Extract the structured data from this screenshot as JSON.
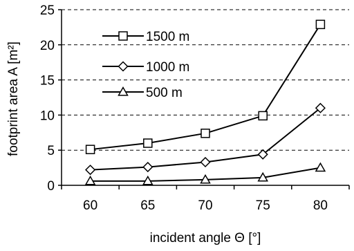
{
  "chart_data": {
    "type": "line",
    "title": "",
    "xlabel": "incident angle Θ [°]",
    "ylabel": "footprint area  A [m²]",
    "x": [
      60,
      65,
      70,
      75,
      80
    ],
    "ylim": [
      0,
      25
    ],
    "yticks": [
      0,
      5,
      10,
      15,
      20,
      25
    ],
    "grid": "horizontal dashed",
    "legend_position": "top-left",
    "series": [
      {
        "name": "1500 m",
        "marker": "square",
        "values": [
          5.1,
          6.0,
          7.4,
          9.9,
          22.9
        ]
      },
      {
        "name": "1000 m",
        "marker": "diamond",
        "values": [
          2.2,
          2.6,
          3.3,
          4.4,
          11.0
        ]
      },
      {
        "name": "500 m",
        "marker": "triangle",
        "values": [
          0.6,
          0.6,
          0.8,
          1.1,
          2.5
        ]
      }
    ]
  }
}
